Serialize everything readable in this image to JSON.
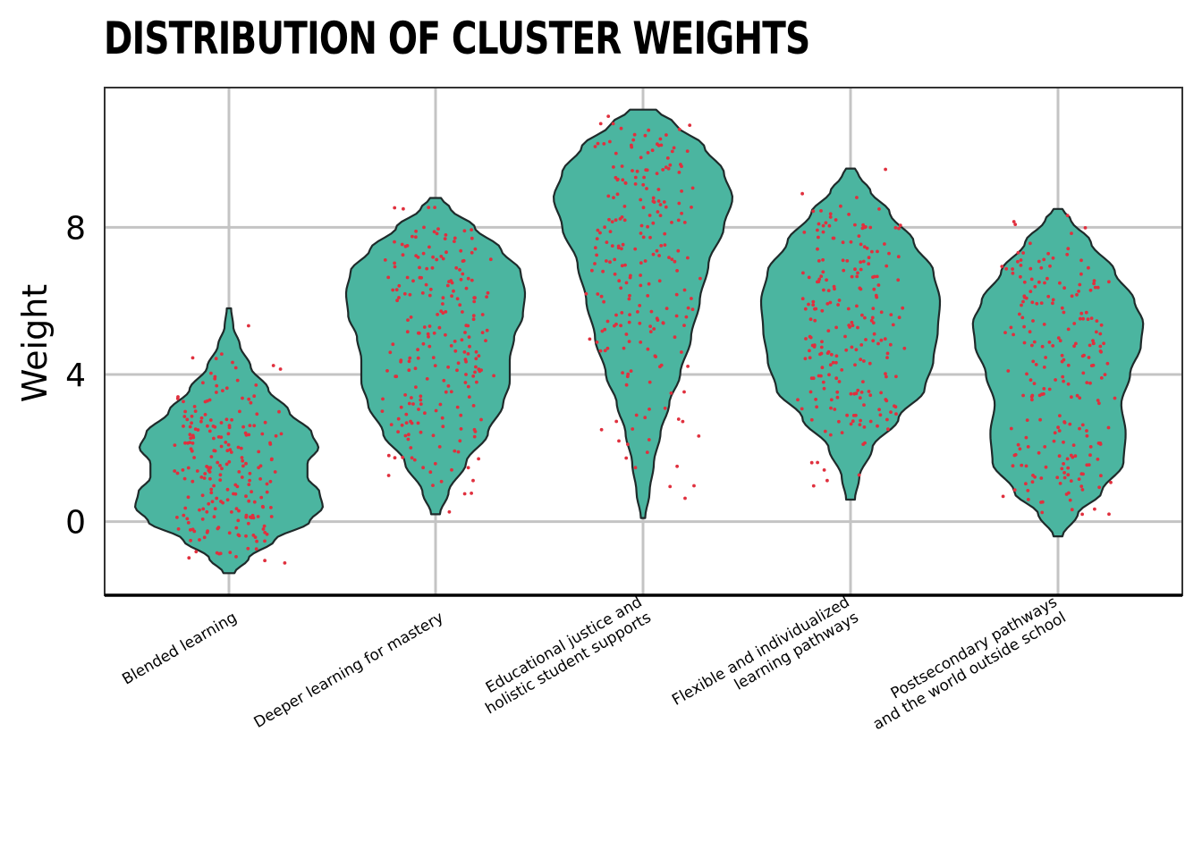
{
  "title": "DISTRIBUTION OF CLUSTER WEIGHTS",
  "colors": {
    "violin_fill": "#4bb5a0",
    "violin_stroke": "#1f2a2a",
    "point": "#e0303e",
    "grid": "#c4c4c4"
  },
  "chart_data": {
    "type": "violin",
    "title": "DISTRIBUTION OF CLUSTER WEIGHTS",
    "xlabel": "",
    "ylabel": "Weight",
    "ylim": [
      -2.0,
      11.8
    ],
    "yticks": [
      0,
      4,
      8
    ],
    "grid": true,
    "points_jittered": true,
    "categories": [
      [
        "Blended learning"
      ],
      [
        "Deeper learning for mastery"
      ],
      [
        "Educational justice and",
        "holistic student supports"
      ],
      [
        "Flexible and individualized",
        "learning pathways"
      ],
      [
        "Postsecondary pathways",
        "and the world outside school"
      ]
    ],
    "violins": [
      {
        "min": -1.4,
        "max": 5.8,
        "profile": [
          [
            -1.4,
            0.05
          ],
          [
            -1.0,
            0.18
          ],
          [
            -0.5,
            0.42
          ],
          [
            0.0,
            0.74
          ],
          [
            0.4,
            0.86
          ],
          [
            0.8,
            0.83
          ],
          [
            1.2,
            0.72
          ],
          [
            1.6,
            0.72
          ],
          [
            2.0,
            0.82
          ],
          [
            2.4,
            0.76
          ],
          [
            3.0,
            0.55
          ],
          [
            3.6,
            0.36
          ],
          [
            4.2,
            0.2
          ],
          [
            4.8,
            0.1
          ],
          [
            5.3,
            0.04
          ],
          [
            5.8,
            0.02
          ]
        ]
      },
      {
        "min": 0.2,
        "max": 8.8,
        "profile": [
          [
            0.2,
            0.04
          ],
          [
            0.8,
            0.12
          ],
          [
            1.6,
            0.28
          ],
          [
            2.4,
            0.48
          ],
          [
            3.2,
            0.62
          ],
          [
            3.8,
            0.68
          ],
          [
            4.4,
            0.68
          ],
          [
            5.0,
            0.72
          ],
          [
            5.6,
            0.8
          ],
          [
            6.2,
            0.82
          ],
          [
            6.8,
            0.78
          ],
          [
            7.4,
            0.6
          ],
          [
            8.0,
            0.36
          ],
          [
            8.5,
            0.14
          ],
          [
            8.8,
            0.05
          ]
        ]
      },
      {
        "min": 0.1,
        "max": 11.2,
        "profile": [
          [
            0.1,
            0.02
          ],
          [
            0.8,
            0.06
          ],
          [
            1.6,
            0.1
          ],
          [
            2.4,
            0.16
          ],
          [
            3.2,
            0.24
          ],
          [
            4.0,
            0.34
          ],
          [
            5.0,
            0.44
          ],
          [
            6.0,
            0.52
          ],
          [
            7.0,
            0.6
          ],
          [
            8.0,
            0.74
          ],
          [
            8.8,
            0.82
          ],
          [
            9.5,
            0.74
          ],
          [
            10.2,
            0.56
          ],
          [
            10.8,
            0.3
          ],
          [
            11.2,
            0.12
          ]
        ]
      },
      {
        "min": 0.6,
        "max": 9.6,
        "profile": [
          [
            0.6,
            0.04
          ],
          [
            1.2,
            0.08
          ],
          [
            2.0,
            0.2
          ],
          [
            2.8,
            0.44
          ],
          [
            3.6,
            0.68
          ],
          [
            4.4,
            0.76
          ],
          [
            5.2,
            0.8
          ],
          [
            6.0,
            0.82
          ],
          [
            6.8,
            0.76
          ],
          [
            7.6,
            0.58
          ],
          [
            8.4,
            0.36
          ],
          [
            9.0,
            0.18
          ],
          [
            9.4,
            0.08
          ],
          [
            9.6,
            0.04
          ]
        ]
      },
      {
        "min": -0.4,
        "max": 8.5,
        "profile": [
          [
            -0.4,
            0.04
          ],
          [
            0.2,
            0.18
          ],
          [
            0.8,
            0.4
          ],
          [
            1.6,
            0.6
          ],
          [
            2.4,
            0.62
          ],
          [
            3.2,
            0.58
          ],
          [
            4.0,
            0.66
          ],
          [
            4.8,
            0.76
          ],
          [
            5.4,
            0.78
          ],
          [
            6.0,
            0.7
          ],
          [
            6.8,
            0.52
          ],
          [
            7.6,
            0.3
          ],
          [
            8.2,
            0.12
          ],
          [
            8.5,
            0.04
          ]
        ]
      }
    ],
    "points_per_category": 220,
    "jitter_seed": 20230617
  }
}
